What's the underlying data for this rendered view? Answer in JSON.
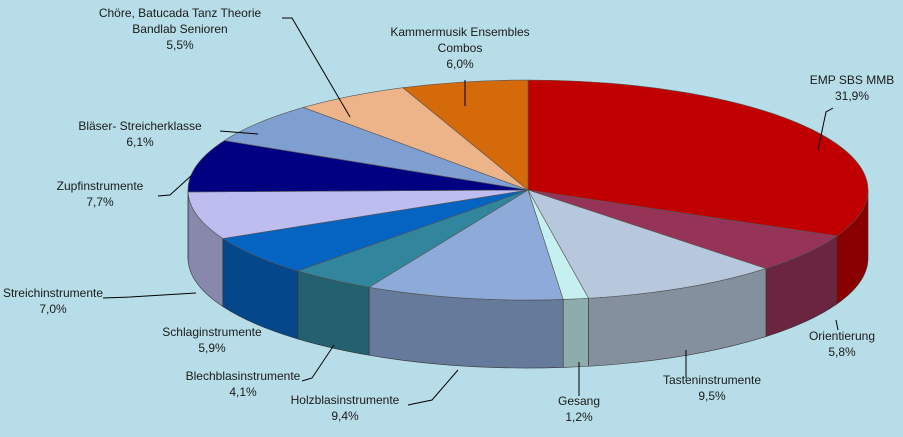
{
  "chart_data": {
    "type": "pie3d",
    "categories": [
      [
        "EMP SBS MMB"
      ],
      [
        "Orientierung"
      ],
      [
        "Tasteninstrumente"
      ],
      [
        "Gesang"
      ],
      [
        "Holzblasinstrumente"
      ],
      [
        "Blechblasinstrumente"
      ],
      [
        "Schlaginstrumente"
      ],
      [
        "Streichinstrumente"
      ],
      [
        "Zupfinstrumente"
      ],
      [
        "Bläser- Streicherklasse"
      ],
      [
        "Chöre, Batucada Tanz Theorie",
        "Bandlab Senioren"
      ],
      [
        "Kammermusik Ensembles",
        "Combos"
      ]
    ],
    "values": [
      31.9,
      5.8,
      9.5,
      1.2,
      9.4,
      4.1,
      5.9,
      7.0,
      7.7,
      6.1,
      5.5,
      6.0
    ],
    "value_labels": [
      "31,9%",
      "5,8%",
      "9,5%",
      "1,2%",
      "9,4%",
      "4,1%",
      "5,9%",
      "7,0%",
      "7,7%",
      "6,1%",
      "5,5%",
      "6,0%"
    ],
    "colors": [
      "#c00000",
      "#953456",
      "#b8c8dc",
      "#c6efef",
      "#8eaad8",
      "#31859c",
      "#0563c1",
      "#bdbdf0",
      "#000080",
      "#7f9fd0",
      "#edb48a",
      "#d46a0a"
    ]
  }
}
